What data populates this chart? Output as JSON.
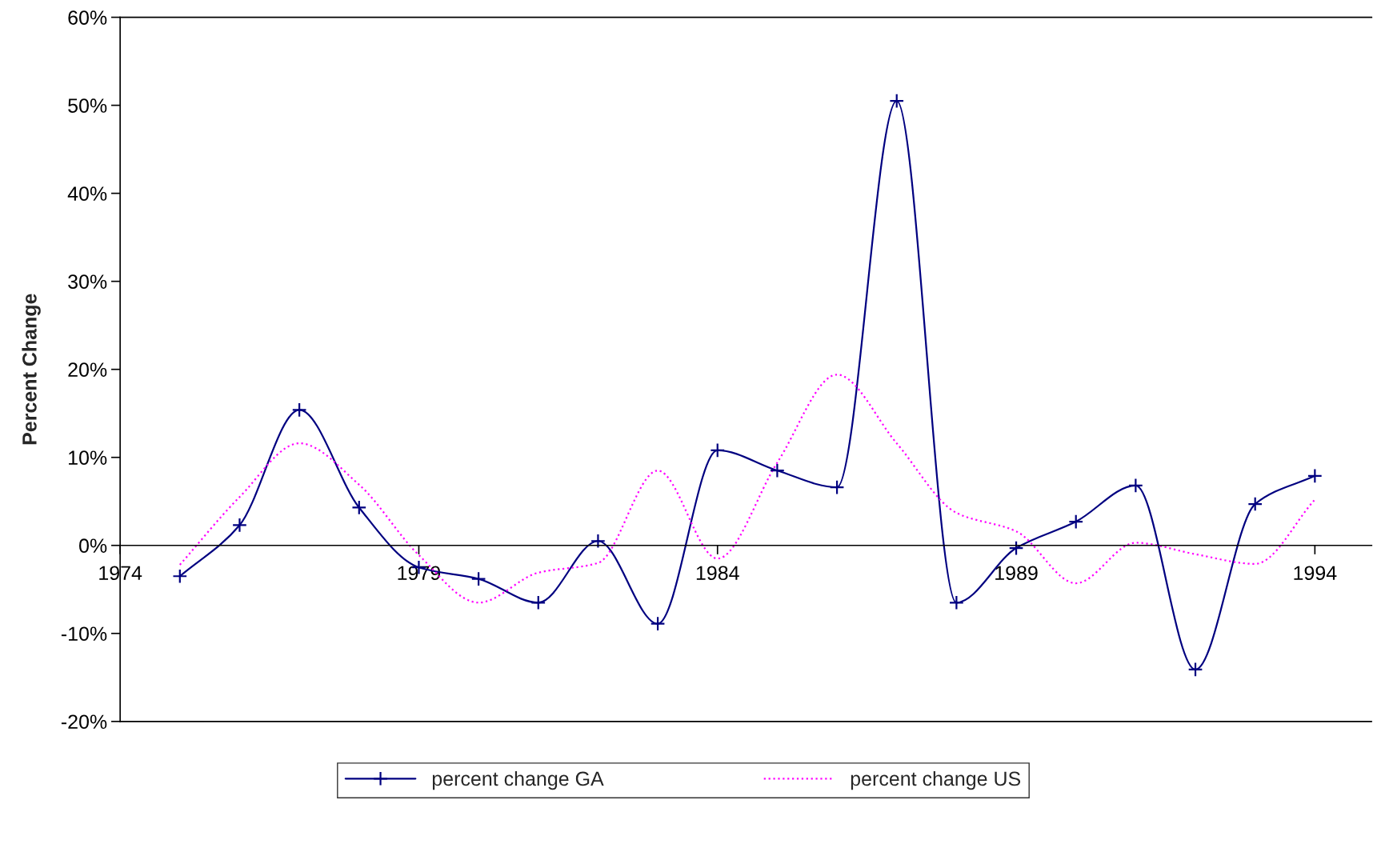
{
  "chart_data": {
    "type": "line",
    "ylabel": "Percent Change",
    "x": [
      1975,
      1976,
      1977,
      1978,
      1979,
      1980,
      1981,
      1982,
      1983,
      1984,
      1985,
      1986,
      1987,
      1988,
      1989,
      1990,
      1991,
      1992,
      1993,
      1994
    ],
    "series": [
      {
        "name": "percent change GA",
        "color": "#000080",
        "marker": "cross",
        "line_style": "solid",
        "values": [
          -3.5,
          2.3,
          15.4,
          4.3,
          -2.5,
          -3.8,
          -6.5,
          0.5,
          -8.9,
          10.8,
          8.5,
          6.6,
          50.5,
          -6.5,
          -0.3,
          2.7,
          6.8,
          -14.1,
          4.7,
          7.9
        ]
      },
      {
        "name": "percent change US",
        "color": "#ff00ff",
        "marker": "none",
        "line_style": "dotted",
        "values": [
          -2.2,
          5.5,
          11.6,
          6.9,
          -1.1,
          -6.5,
          -3.1,
          -2.0,
          8.5,
          -1.5,
          9.4,
          19.4,
          11.6,
          3.7,
          1.6,
          -4.3,
          0.3,
          -1.0,
          -2.1,
          5.2
        ]
      }
    ],
    "xlim": [
      1974,
      1994.95
    ],
    "ylim": [
      -20,
      60
    ],
    "xticks": [
      1974,
      1979,
      1984,
      1989,
      1994
    ],
    "yticks": [
      {
        "value": -20,
        "label": "-20%"
      },
      {
        "value": -10,
        "label": "-10%"
      },
      {
        "value": 0,
        "label": "0%"
      },
      {
        "value": 10,
        "label": "10%"
      },
      {
        "value": 20,
        "label": "20%"
      },
      {
        "value": 30,
        "label": "30%"
      },
      {
        "value": 40,
        "label": "40%"
      },
      {
        "value": 50,
        "label": "50%"
      },
      {
        "value": 60,
        "label": "60%"
      }
    ],
    "grid": false,
    "legend": "bottom"
  }
}
